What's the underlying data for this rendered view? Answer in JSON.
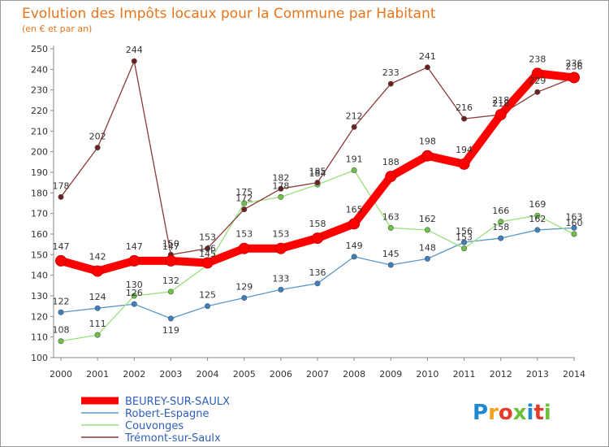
{
  "chart_data": {
    "type": "line",
    "title": "Evolution des Impôts locaux pour la Commune par Habitant",
    "subtitle": "(en € et par an)",
    "x": [
      "2000",
      "2001",
      "2002",
      "2003",
      "2004",
      "2005",
      "2006",
      "2007",
      "2008",
      "2009",
      "2010",
      "2011",
      "2012",
      "2013",
      "2014"
    ],
    "ylim": [
      100,
      250
    ],
    "yticks": [
      100,
      110,
      120,
      130,
      140,
      150,
      160,
      170,
      180,
      190,
      200,
      210,
      220,
      230,
      240,
      250
    ],
    "grid": false,
    "legend_position": "bottom-left",
    "series": [
      {
        "name": "BEUREY-SUR-SAULX",
        "color": "#ff0000",
        "marker": "#ff0000",
        "width": 10,
        "values": [
          147,
          142,
          147,
          147,
          146,
          153,
          153,
          158,
          165,
          188,
          198,
          194,
          218,
          238,
          236
        ]
      },
      {
        "name": "Robert-Espagne",
        "color": "#5b97c8",
        "marker": "#3a7fc0",
        "width": 1.3,
        "values": [
          122,
          124,
          126,
          119,
          125,
          129,
          133,
          136,
          149,
          145,
          148,
          156,
          158,
          162,
          163
        ]
      },
      {
        "name": "Couvonges",
        "color": "#98e07c",
        "marker": "#6cc443",
        "width": 1.3,
        "values": [
          108,
          111,
          130,
          132,
          145,
          175,
          178,
          184,
          191,
          163,
          162,
          153,
          166,
          169,
          160
        ]
      },
      {
        "name": "Trémont-sur-Saulx",
        "color": "#8b3a3a",
        "marker": "#6e1f1f",
        "width": 1.3,
        "values": [
          178,
          202,
          244,
          150,
          153,
          172,
          182,
          185,
          212,
          233,
          241,
          216,
          218,
          229,
          236
        ]
      }
    ],
    "labels": [
      {
        "text": "147",
        "x": 0,
        "y": 147,
        "dy": -14
      },
      {
        "text": "142",
        "x": 1,
        "y": 142,
        "dy": -14
      },
      {
        "text": "147",
        "x": 2,
        "y": 147,
        "dy": -14
      },
      {
        "text": "147",
        "x": 3,
        "y": 147,
        "dy": -14
      },
      {
        "text": "146",
        "x": 4,
        "y": 146,
        "dy": -14
      },
      {
        "text": "153",
        "x": 5,
        "y": 153,
        "dy": -14
      },
      {
        "text": "153",
        "x": 6,
        "y": 153,
        "dy": -14
      },
      {
        "text": "158",
        "x": 7,
        "y": 158,
        "dy": -14
      },
      {
        "text": "165",
        "x": 8,
        "y": 165,
        "dy": -14
      },
      {
        "text": "188",
        "x": 9,
        "y": 188,
        "dy": -14
      },
      {
        "text": "198",
        "x": 10,
        "y": 198,
        "dy": -14
      },
      {
        "text": "194",
        "x": 11,
        "y": 194,
        "dy": -14
      },
      {
        "text": "218",
        "x": 12,
        "y": 218,
        "dy": -14
      },
      {
        "text": "238",
        "x": 13,
        "y": 238,
        "dy": -14
      },
      {
        "text": "236",
        "x": 14,
        "y": 236,
        "dy": -14
      },
      {
        "text": "122",
        "x": 0,
        "y": 122,
        "dy": -10
      },
      {
        "text": "124",
        "x": 1,
        "y": 124,
        "dy": -10
      },
      {
        "text": "126",
        "x": 2,
        "y": 126,
        "dy": -10
      },
      {
        "text": "119",
        "x": 3,
        "y": 119,
        "dy": 18
      },
      {
        "text": "125",
        "x": 4,
        "y": 125,
        "dy": -10
      },
      {
        "text": "129",
        "x": 5,
        "y": 129,
        "dy": -10
      },
      {
        "text": "133",
        "x": 6,
        "y": 133,
        "dy": -10
      },
      {
        "text": "136",
        "x": 7,
        "y": 136,
        "dy": -10
      },
      {
        "text": "149",
        "x": 8,
        "y": 149,
        "dy": -10
      },
      {
        "text": "145",
        "x": 9,
        "y": 145,
        "dy": -10
      },
      {
        "text": "148",
        "x": 10,
        "y": 148,
        "dy": -10
      },
      {
        "text": "156",
        "x": 11,
        "y": 156,
        "dy": -10
      },
      {
        "text": "158",
        "x": 12,
        "y": 158,
        "dy": -10
      },
      {
        "text": "162",
        "x": 13,
        "y": 162,
        "dy": -10
      },
      {
        "text": "163",
        "x": 14,
        "y": 163,
        "dy": -10
      },
      {
        "text": "108",
        "x": 0,
        "y": 108,
        "dy": -10
      },
      {
        "text": "111",
        "x": 1,
        "y": 111,
        "dy": -10
      },
      {
        "text": "130",
        "x": 2,
        "y": 130,
        "dy": -10
      },
      {
        "text": "132",
        "x": 3,
        "y": 132,
        "dy": -10
      },
      {
        "text": "145",
        "x": 4,
        "y": 145,
        "dy": -10
      },
      {
        "text": "175",
        "x": 5,
        "y": 175,
        "dy": -10
      },
      {
        "text": "178",
        "x": 6,
        "y": 178,
        "dy": -10
      },
      {
        "text": "184",
        "x": 7,
        "y": 184,
        "dy": -10
      },
      {
        "text": "191",
        "x": 8,
        "y": 191,
        "dy": -10
      },
      {
        "text": "163",
        "x": 9,
        "y": 163,
        "dy": -10
      },
      {
        "text": "162",
        "x": 10,
        "y": 162,
        "dy": -10
      },
      {
        "text": "153",
        "x": 11,
        "y": 153,
        "dy": -10
      },
      {
        "text": "166",
        "x": 12,
        "y": 166,
        "dy": -10
      },
      {
        "text": "169",
        "x": 13,
        "y": 169,
        "dy": -10
      },
      {
        "text": "160",
        "x": 14,
        "y": 160,
        "dy": -10
      },
      {
        "text": "178",
        "x": 0,
        "y": 178,
        "dy": -10
      },
      {
        "text": "202",
        "x": 1,
        "y": 202,
        "dy": -10
      },
      {
        "text": "244",
        "x": 2,
        "y": 244,
        "dy": -10
      },
      {
        "text": "150",
        "x": 3,
        "y": 150,
        "dy": -10
      },
      {
        "text": "153",
        "x": 4,
        "y": 153,
        "dy": -10
      },
      {
        "text": "172",
        "x": 5,
        "y": 172,
        "dy": -10
      },
      {
        "text": "182",
        "x": 6,
        "y": 182,
        "dy": -10
      },
      {
        "text": "185",
        "x": 7,
        "y": 185,
        "dy": -10
      },
      {
        "text": "212",
        "x": 8,
        "y": 212,
        "dy": -10
      },
      {
        "text": "233",
        "x": 9,
        "y": 233,
        "dy": -10
      },
      {
        "text": "241",
        "x": 10,
        "y": 241,
        "dy": -10
      },
      {
        "text": "216",
        "x": 11,
        "y": 216,
        "dy": -10
      },
      {
        "text": "218",
        "x": 12,
        "y": 218,
        "dy": -10
      },
      {
        "text": "229",
        "x": 13,
        "y": 229,
        "dy": -10
      },
      {
        "text": "236",
        "x": 14,
        "y": 236,
        "dy": -10
      }
    ]
  },
  "brand": {
    "name": "Proxiti",
    "colors": [
      "#1e88d0",
      "#f2a21b",
      "#e23d2a",
      "#6cbf3a",
      "#1e88d0",
      "#e23d2a",
      "#6cbf3a"
    ]
  }
}
